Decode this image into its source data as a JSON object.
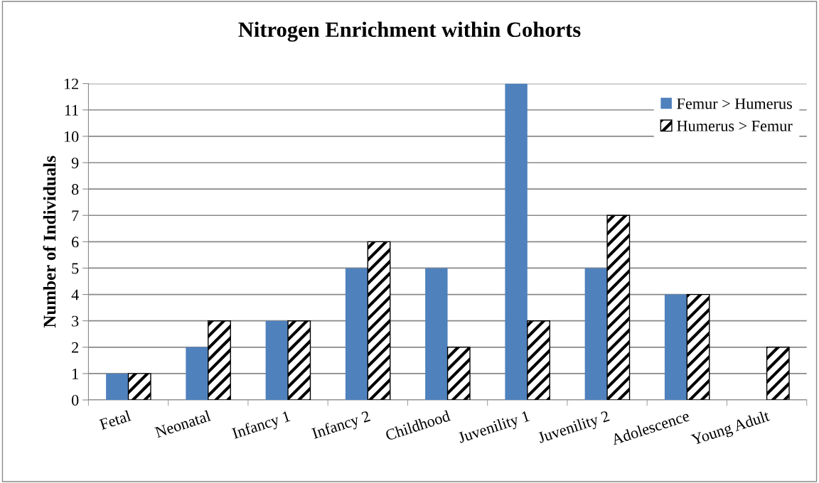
{
  "chart_data": {
    "type": "bar",
    "title": "Nitrogen Enrichment within Cohorts",
    "ylabel": "Number of Individuals",
    "categories": [
      "Fetal",
      "Neonatal",
      "Infancy 1",
      "Infancy 2",
      "Childhood",
      "Juvenility 1",
      "Juvenility 2",
      "Adolescence",
      "Young Adult"
    ],
    "series": [
      {
        "name": "Femur > Humerus",
        "color": "#4f81bd",
        "values": [
          1,
          2,
          3,
          5,
          5,
          12,
          5,
          4,
          0
        ]
      },
      {
        "name": "Humerus > Femur",
        "color": "#000000",
        "values": [
          1,
          3,
          3,
          6,
          2,
          3,
          7,
          4,
          2
        ]
      }
    ],
    "ylim": [
      0,
      12
    ],
    "yticks": [
      0,
      1,
      2,
      3,
      4,
      5,
      6,
      7,
      8,
      9,
      10,
      11,
      12
    ],
    "grid": "y",
    "legend": "top right"
  }
}
